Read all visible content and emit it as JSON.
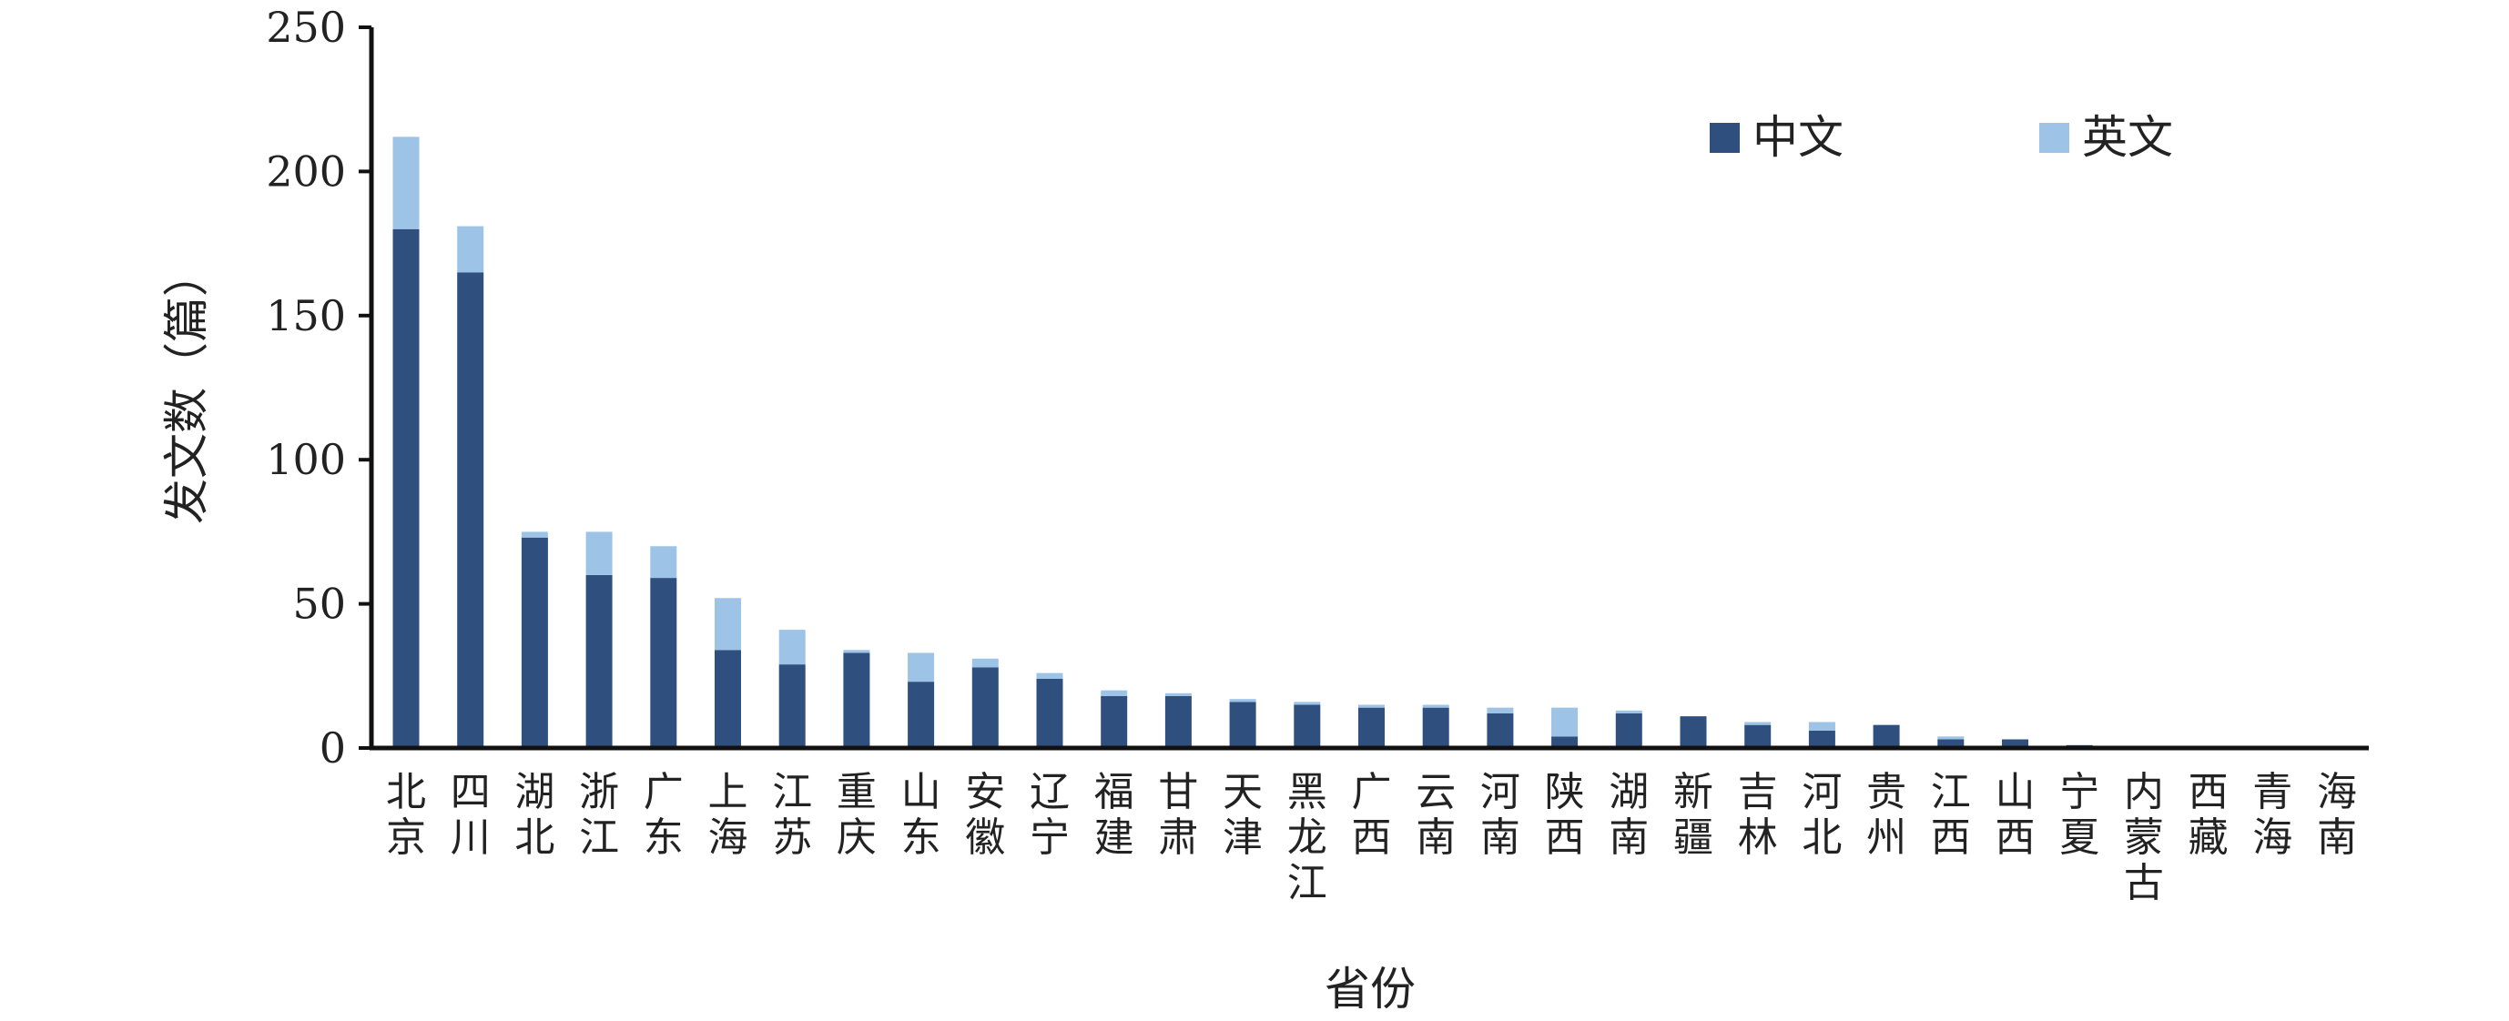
{
  "chart_data": {
    "type": "bar",
    "stacked": true,
    "xlabel": "省份",
    "ylabel": "发文数（篇）",
    "ylim": [
      0,
      250
    ],
    "yticks": [
      0,
      50,
      100,
      150,
      200,
      250
    ],
    "grid": false,
    "legend_position": "top-right",
    "categories": [
      "北京",
      "四川",
      "湖北",
      "浙江",
      "广东",
      "上海",
      "江苏",
      "重庆",
      "山东",
      "安徽",
      "辽宁",
      "福建",
      "甘肃",
      "天津",
      "黑龙江",
      "广西",
      "云南",
      "河南",
      "陕西",
      "湖南",
      "新疆",
      "吉林",
      "河北",
      "贵州",
      "江西",
      "山西",
      "宁夏",
      "内蒙古",
      "西藏",
      "青海",
      "海南"
    ],
    "series": [
      {
        "name": "中文",
        "color": "#2f4f7f",
        "values": [
          180,
          165,
          73,
          60,
          59,
          34,
          29,
          33,
          23,
          28,
          24,
          18,
          18,
          16,
          15,
          14,
          14,
          12,
          4,
          12,
          11,
          8,
          6,
          8,
          3,
          3,
          1,
          0.5,
          0,
          0,
          0
        ]
      },
      {
        "name": "英文",
        "color": "#9dc3e6",
        "values": [
          32,
          16,
          2,
          15,
          11,
          18,
          12,
          1,
          10,
          3,
          2,
          2,
          1,
          1,
          1,
          1,
          1,
          2,
          10,
          1,
          0,
          1,
          3,
          0,
          1,
          0,
          0,
          0,
          0,
          0,
          0
        ]
      }
    ]
  }
}
